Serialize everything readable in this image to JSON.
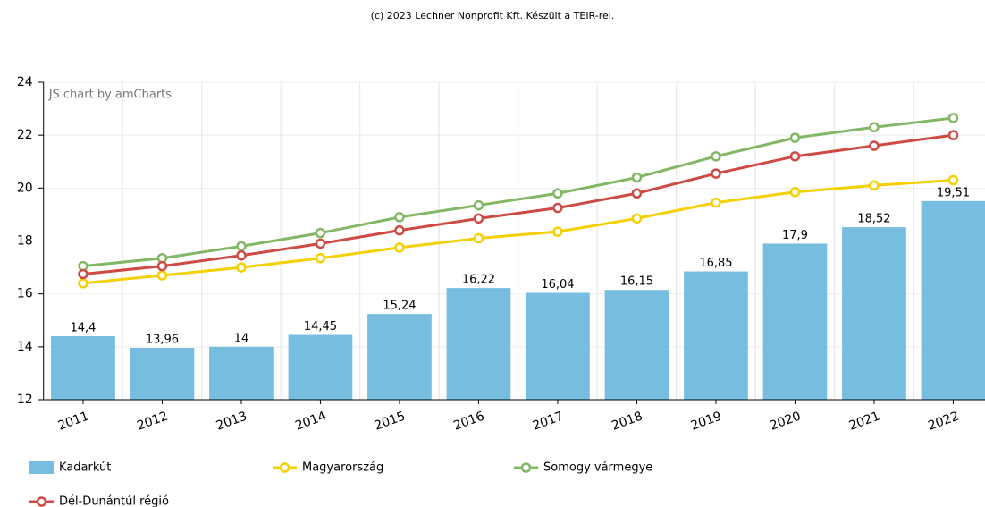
{
  "chart_data": {
    "type": "bar-line",
    "title": "(c) 2023 Lechner Nonprofit Kft. Készült a TEIR-rel.",
    "watermark": "JS chart by amCharts",
    "categories": [
      "2011",
      "2012",
      "2013",
      "2014",
      "2015",
      "2016",
      "2017",
      "2018",
      "2019",
      "2020",
      "2021",
      "2022"
    ],
    "ylim": [
      12,
      24
    ],
    "yticks": [
      12,
      14,
      16,
      18,
      20,
      22,
      24
    ],
    "grid": true,
    "series": [
      {
        "name": "Kadarkút",
        "type": "bar",
        "color": "#76bde0",
        "values": [
          14.4,
          13.96,
          14,
          14.45,
          15.24,
          16.22,
          16.04,
          16.15,
          16.85,
          17.9,
          18.52,
          19.51
        ],
        "value_labels": [
          "14,4",
          "13,96",
          "14",
          "14,45",
          "15,24",
          "16,22",
          "16,04",
          "16,15",
          "16,85",
          "17,9",
          "18,52",
          "19,51"
        ]
      },
      {
        "name": "Magyarország",
        "type": "line",
        "color": "#f5d000",
        "values": [
          16.4,
          16.7,
          17.0,
          17.35,
          17.75,
          18.1,
          18.35,
          18.85,
          19.45,
          19.85,
          20.1,
          20.3
        ]
      },
      {
        "name": "Somogy vármegye",
        "type": "line",
        "color": "#82b865",
        "values": [
          17.05,
          17.35,
          17.8,
          18.3,
          18.9,
          19.35,
          19.8,
          20.4,
          21.2,
          21.9,
          22.3,
          22.65
        ]
      },
      {
        "name": "Dél-Dunántúl régió",
        "type": "line",
        "color": "#d04a44",
        "values": [
          16.75,
          17.05,
          17.45,
          17.9,
          18.4,
          18.85,
          19.25,
          19.8,
          20.55,
          21.2,
          21.6,
          22.0
        ]
      }
    ]
  }
}
